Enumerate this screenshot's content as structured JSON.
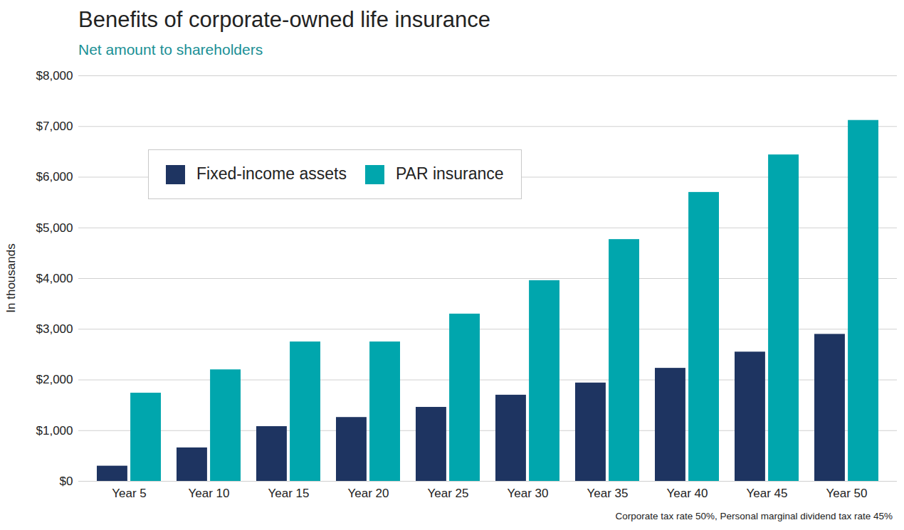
{
  "chart_data": {
    "type": "bar",
    "title": "Benefits of corporate-owned life insurance",
    "subtitle": "Net amount to shareholders",
    "y_label": "In thousands",
    "caption": "Corporate tax rate 50%, Personal marginal dividend tax rate 45%",
    "categories": [
      "Year 5",
      "Year 10",
      "Year 15",
      "Year 20",
      "Year 25",
      "Year 30",
      "Year 35",
      "Year 40",
      "Year 45",
      "Year 50"
    ],
    "series": [
      {
        "name": "Fixed-income assets",
        "color": "#1e3461",
        "values": [
          300,
          660,
          1080,
          1260,
          1460,
          1700,
          1940,
          2230,
          2550,
          2900
        ]
      },
      {
        "name": "PAR insurance",
        "color": "#00a6ad",
        "values": [
          1740,
          2200,
          2750,
          2750,
          3300,
          3960,
          4770,
          5700,
          6440,
          7120
        ]
      }
    ],
    "ylim": [
      0,
      8000
    ],
    "yticks": [
      {
        "value": 0,
        "label": "$0"
      },
      {
        "value": 1000,
        "label": "$1,000"
      },
      {
        "value": 2000,
        "label": "$2,000"
      },
      {
        "value": 3000,
        "label": "$3,000"
      },
      {
        "value": 4000,
        "label": "$4,000"
      },
      {
        "value": 5000,
        "label": "$5,000"
      },
      {
        "value": 6000,
        "label": "$6,000"
      },
      {
        "value": 7000,
        "label": "$7,000"
      },
      {
        "value": 8000,
        "label": "$8,000"
      }
    ],
    "grid": true,
    "legend": "upper left"
  }
}
